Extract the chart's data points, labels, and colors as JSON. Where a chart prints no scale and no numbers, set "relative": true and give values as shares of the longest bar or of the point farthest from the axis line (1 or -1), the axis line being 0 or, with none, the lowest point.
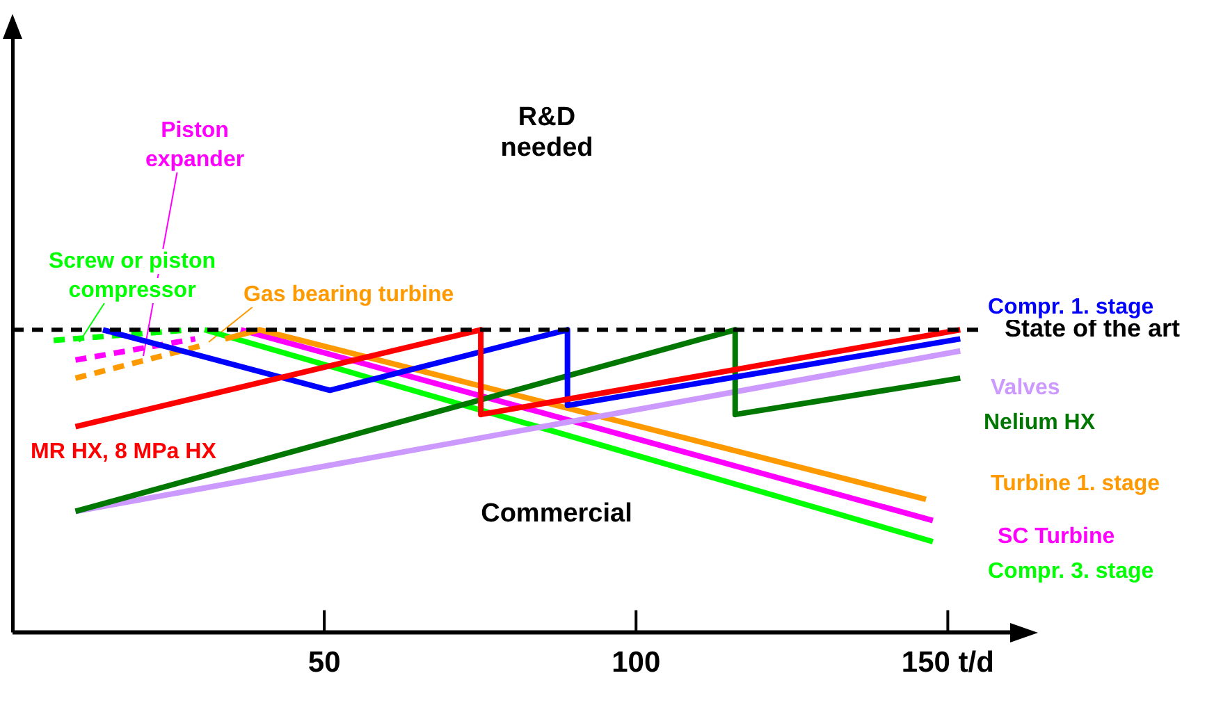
{
  "chart_data": {
    "type": "line",
    "relative": true,
    "xlim": [
      0,
      160
    ],
    "xticks": [
      50,
      100,
      {
        "value": 150,
        "label": "150 t/d"
      }
    ],
    "tick_labels": "x",
    "grid": false,
    "legend": false,
    "marker": "none",
    "annotations": [
      "R&D needed",
      "Commercial"
    ],
    "ref_lines": [
      {
        "axis": "y",
        "value": 1,
        "label": "State of the art",
        "color": "#000000",
        "line_style": "dashed"
      }
    ],
    "series": [
      {
        "name": "MR HX, 8 MPa HX",
        "color": "#ff0000",
        "x": [
          10.1,
          75.1,
          75.1,
          152
        ],
        "values": [
          0.68,
          1,
          0.72,
          1
        ]
      },
      {
        "name": "Compr. 1. stage",
        "color": "#0000ff",
        "x": [
          14.5,
          50.9,
          89,
          89,
          152
        ],
        "values": [
          1,
          0.8,
          1,
          0.75,
          0.97
        ]
      },
      {
        "name": "Nelium HX",
        "color": "#007700",
        "x": [
          10.1,
          115.9,
          115.9,
          152
        ],
        "values": [
          0.4,
          1,
          0.72,
          0.84
        ]
      },
      {
        "name": "Valves",
        "color": "#cc99ff",
        "x": [
          10.1,
          152
        ],
        "values": [
          0.4,
          0.93
        ]
      },
      {
        "name": "Turbine 1. stage",
        "color": "#ff9900",
        "x": [
          34.1,
          39.6,
          146.5
        ],
        "values": [
          0.97,
          1,
          0.44
        ]
      },
      {
        "name": "SC Turbine",
        "color": "#ff00ff",
        "x": [
          36.6,
          147.6
        ],
        "values": [
          1,
          0.37
        ]
      },
      {
        "name": "Compr. 3. stage",
        "color": "#00ff00",
        "x": [
          30.8,
          147.6
        ],
        "values": [
          1,
          0.3
        ]
      },
      {
        "name": "Gas bearing turbine",
        "color": "#ff9900",
        "line_style": "dashed",
        "x": [
          10.1,
          30.8
        ],
        "values": [
          0.84,
          0.95
        ]
      },
      {
        "name": "Piston expander",
        "color": "#ff00ff",
        "line_style": "dashed",
        "x": [
          10.1,
          29.3
        ],
        "values": [
          0.9,
          0.97
        ]
      },
      {
        "name": "Screw or piston compressor",
        "color": "#00ff00",
        "line_style": "dashed",
        "x": [
          6.6,
          28.6
        ],
        "values": [
          0.965,
          1
        ]
      }
    ]
  }
}
